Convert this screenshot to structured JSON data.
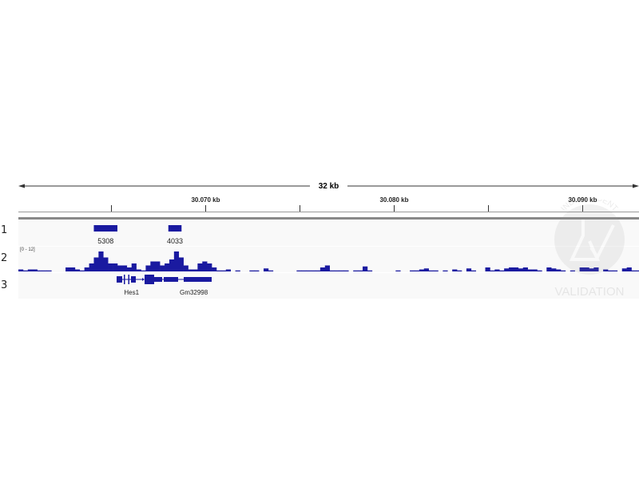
{
  "ruler": {
    "span_label": "32 kb",
    "view_start_kb": 30060.1,
    "view_end_kb": 30093.0,
    "ticks": [
      {
        "kb": 30065,
        "label": ""
      },
      {
        "kb": 30070,
        "label": "30.070 kb"
      },
      {
        "kb": 30075,
        "label": ""
      },
      {
        "kb": 30080,
        "label": "30.080 kb"
      },
      {
        "kb": 30085,
        "label": ""
      },
      {
        "kb": 30090,
        "label": "30.090 kb"
      }
    ]
  },
  "tracks": [
    {
      "number": "1",
      "features": [
        {
          "start_kb": 30064.1,
          "end_kb": 30065.35,
          "label": "5308"
        },
        {
          "start_kb": 30068.05,
          "end_kb": 30068.75,
          "label": "4033"
        }
      ]
    },
    {
      "number": "2",
      "data_range": "[0 - 12]",
      "color": "#1a1aa0",
      "coverage": {
        "start_kb": 30060.1,
        "bin_kb": 0.25,
        "max": 12,
        "values": [
          1,
          0.5,
          1,
          1,
          0.5,
          0.5,
          0.5,
          0,
          0,
          0,
          2,
          2,
          1,
          0.5,
          2,
          4,
          7,
          10,
          7,
          4,
          4,
          3,
          3,
          2,
          4,
          1,
          0.5,
          3,
          5,
          5,
          3,
          4,
          6,
          10,
          7,
          3,
          1,
          1,
          4,
          5,
          4,
          2,
          0.5,
          0.5,
          1,
          0,
          0.5,
          0,
          0,
          0.5,
          0.5,
          0,
          1.5,
          0.5,
          0,
          0,
          0,
          0,
          0,
          0.5,
          0.5,
          0.5,
          0.5,
          0.5,
          2,
          3,
          0.5,
          0.5,
          0.5,
          0.5,
          0,
          0.5,
          0.5,
          2.5,
          0.5,
          0,
          0,
          0,
          0,
          0,
          0.5,
          0,
          0,
          0.5,
          0.5,
          1,
          1.5,
          0.5,
          0.5,
          0,
          0.5,
          0,
          1,
          0.5,
          0,
          1.5,
          0.5,
          0,
          0,
          2,
          0.5,
          1,
          0.5,
          1.5,
          2,
          2,
          1.5,
          2,
          1,
          1,
          0.5,
          0,
          2,
          1.5,
          1,
          0.5,
          0,
          0.5,
          0,
          2,
          2,
          1.5,
          2,
          0,
          1,
          0.5,
          0.5,
          0,
          1.5,
          2,
          0.5,
          0.5,
          1,
          0.5
        ]
      }
    },
    {
      "number": "3",
      "genes": [
        {
          "name": "Hes1",
          "label_kb": 30066.1
        },
        {
          "name": "Gm32998",
          "label_kb": 30069.4
        }
      ]
    }
  ],
  "watermark": {
    "top_text": "INDEPENDENT",
    "bottom_text": "VALIDATION",
    "icon": "flask-check-icon"
  }
}
